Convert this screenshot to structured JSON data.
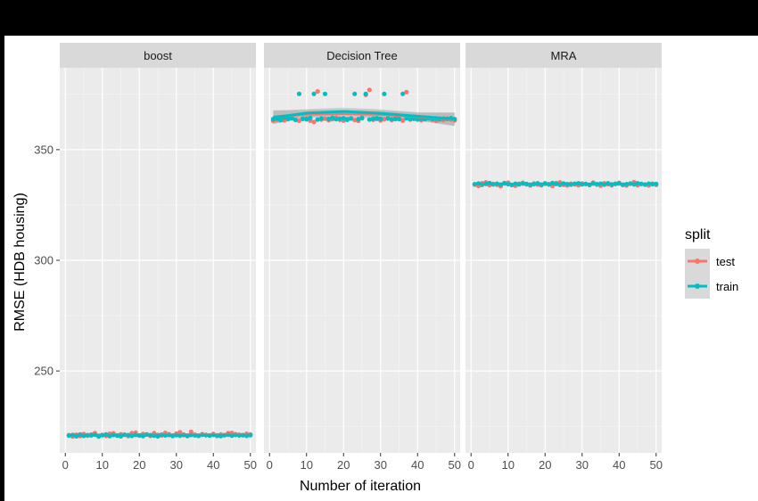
{
  "chart_data": {
    "type": "scatter",
    "xlabel": "Number of iteration",
    "ylabel": "RMSE (HDB housing)",
    "xlim": [
      -1.5,
      51.5
    ],
    "ylim": [
      213,
      387
    ],
    "x_ticks": [
      0,
      10,
      20,
      30,
      40,
      50
    ],
    "y_ticks": [
      250,
      300,
      350
    ],
    "grid": true,
    "legend": {
      "title": "split",
      "position": "right",
      "entries": [
        {
          "name": "test",
          "color": "#F8766D"
        },
        {
          "name": "train",
          "color": "#00BFC4"
        }
      ]
    },
    "facets": [
      {
        "name": "boost",
        "series": [
          {
            "name": "test",
            "x": [
              1,
              2,
              3,
              4,
              5,
              6,
              7,
              8,
              9,
              10,
              11,
              12,
              13,
              14,
              15,
              16,
              17,
              18,
              19,
              20,
              21,
              22,
              23,
              24,
              25,
              26,
              27,
              28,
              29,
              30,
              31,
              32,
              33,
              34,
              35,
              36,
              37,
              38,
              39,
              40,
              41,
              42,
              43,
              44,
              45,
              46,
              47,
              48,
              49,
              50
            ],
            "y": [
              221.0,
              220.4,
              221.2,
              220.6,
              221.5,
              220.8,
              221.3,
              221.9,
              220.5,
              221.1,
              220.7,
              221.6,
              221.8,
              220.9,
              221.4,
              221.2,
              220.6,
              221.9,
              222.1,
              220.8,
              221.5,
              221.3,
              220.7,
              221.9,
              221.1,
              220.9,
              222.0,
              221.4,
              220.6,
              221.7,
              222.3,
              221.0,
              220.8,
              222.5,
              221.2,
              220.7,
              221.4,
              221.1,
              220.9,
              221.5,
              220.6,
              221.3,
              221.0,
              221.9,
              222.0,
              221.4,
              221.2,
              221.0,
              221.6,
              221.3
            ],
            "smooth": [
              221.0,
              221.1,
              221.1,
              221.2,
              221.2,
              221.2
            ]
          },
          {
            "name": "train",
            "x": [
              1,
              2,
              3,
              4,
              5,
              6,
              7,
              8,
              9,
              10,
              11,
              12,
              13,
              14,
              15,
              16,
              17,
              18,
              19,
              20,
              21,
              22,
              23,
              24,
              25,
              26,
              27,
              28,
              29,
              30,
              31,
              32,
              33,
              34,
              35,
              36,
              37,
              38,
              39,
              40,
              41,
              42,
              43,
              44,
              45,
              46,
              47,
              48,
              49,
              50
            ],
            "y": [
              220.8,
              221.1,
              220.5,
              221.3,
              220.7,
              221.0,
              220.9,
              221.2,
              220.4,
              221.0,
              221.3,
              220.6,
              221.1,
              220.8,
              220.5,
              221.2,
              221.0,
              220.7,
              221.1,
              220.9,
              220.6,
              221.3,
              221.0,
              220.8,
              220.5,
              221.2,
              220.9,
              221.1,
              220.7,
              221.0,
              220.8,
              221.2,
              220.6,
              221.1,
              220.9,
              220.7,
              221.2,
              221.0,
              220.8,
              221.1,
              220.9,
              220.6,
              221.0,
              221.2,
              220.8,
              221.1,
              220.9,
              221.0,
              220.7,
              221.0
            ],
            "smooth": [
              220.9,
              221.0,
              221.0,
              221.0,
              221.0,
              221.0
            ]
          }
        ]
      },
      {
        "name": "Decision Tree",
        "series": [
          {
            "name": "test",
            "x": [
              1,
              2,
              3,
              4,
              5,
              6,
              7,
              8,
              9,
              10,
              11,
              12,
              13,
              14,
              15,
              16,
              17,
              18,
              19,
              20,
              21,
              22,
              23,
              24,
              25,
              26,
              27,
              28,
              29,
              30,
              31,
              32,
              33,
              34,
              35,
              36,
              37,
              38,
              39,
              40,
              41,
              42,
              43,
              44,
              45,
              46,
              47,
              48,
              49,
              50
            ],
            "y": [
              363.0,
              363.5,
              364.1,
              363.2,
              363.8,
              364.5,
              363.4,
              363.0,
              363.9,
              364.2,
              363.1,
              362.5,
              376.3,
              363.6,
              364.0,
              363.3,
              363.8,
              364.4,
              363.5,
              363.1,
              363.9,
              364.1,
              363.4,
              363.0,
              364.3,
              374.8,
              377.0,
              363.5,
              363.9,
              363.2,
              363.7,
              364.2,
              363.4,
              363.8,
              364.0,
              363.1,
              376.0,
              363.6,
              363.9,
              364.2,
              363.3,
              363.8,
              364.1,
              363.5,
              363.0,
              363.9,
              363.4,
              364.0,
              363.6,
              363.2
            ],
            "smooth": [
              364.8,
              366.0,
              366.3,
              365.9,
              364.9,
              363.6
            ]
          },
          {
            "name": "train",
            "x": [
              1,
              2,
              3,
              4,
              5,
              6,
              7,
              8,
              9,
              10,
              11,
              12,
              13,
              14,
              15,
              16,
              17,
              18,
              19,
              20,
              21,
              22,
              23,
              24,
              25,
              26,
              27,
              28,
              29,
              30,
              31,
              32,
              33,
              34,
              35,
              36,
              37,
              38,
              39,
              40,
              41,
              42,
              43,
              44,
              45,
              46,
              47,
              48,
              49,
              50
            ],
            "y": [
              363.8,
              364.1,
              363.3,
              364.6,
              363.9,
              364.2,
              363.5,
              375.2,
              364.0,
              363.7,
              364.3,
              375.2,
              363.6,
              364.1,
              375.2,
              363.9,
              364.4,
              363.8,
              364.0,
              364.2,
              363.5,
              364.1,
              375.2,
              363.8,
              364.3,
              375.2,
              363.6,
              364.0,
              364.2,
              363.9,
              375.2,
              364.1,
              363.7,
              364.0,
              363.8,
              375.2,
              364.2,
              363.9,
              364.1,
              363.6,
              364.0,
              363.8,
              364.3,
              363.9,
              364.1,
              363.7,
              364.0,
              363.9,
              364.2,
              363.8
            ],
            "smooth": [
              364.5,
              366.5,
              367.2,
              366.4,
              365.1,
              363.8
            ]
          }
        ]
      },
      {
        "name": "MRA",
        "series": [
          {
            "name": "test",
            "x": [
              1,
              2,
              3,
              4,
              5,
              6,
              7,
              8,
              9,
              10,
              11,
              12,
              13,
              14,
              15,
              16,
              17,
              18,
              19,
              20,
              21,
              22,
              23,
              24,
              25,
              26,
              27,
              28,
              29,
              30,
              31,
              32,
              33,
              34,
              35,
              36,
              37,
              38,
              39,
              40,
              41,
              42,
              43,
              44,
              45,
              46,
              47,
              48,
              49,
              50
            ],
            "y": [
              334.2,
              333.6,
              334.8,
              335.2,
              333.9,
              334.5,
              334.1,
              333.5,
              334.9,
              335.1,
              334.0,
              333.7,
              334.6,
              335.0,
              334.3,
              333.8,
              334.7,
              334.2,
              333.9,
              334.8,
              334.4,
              333.6,
              334.9,
              335.2,
              334.1,
              333.8,
              334.6,
              334.3,
              333.9,
              334.7,
              334.5,
              334.0,
              335.1,
              334.2,
              333.7,
              334.8,
              334.4,
              333.9,
              334.6,
              335.0,
              334.1,
              333.8,
              334.7,
              335.3,
              333.9,
              334.5,
              334.2,
              333.8,
              334.6,
              334.1
            ],
            "smooth": [
              334.3,
              334.4,
              334.4,
              334.4,
              334.4,
              334.4
            ]
          },
          {
            "name": "train",
            "x": [
              1,
              2,
              3,
              4,
              5,
              6,
              7,
              8,
              9,
              10,
              11,
              12,
              13,
              14,
              15,
              16,
              17,
              18,
              19,
              20,
              21,
              22,
              23,
              24,
              25,
              26,
              27,
              28,
              29,
              30,
              31,
              32,
              33,
              34,
              35,
              36,
              37,
              38,
              39,
              40,
              41,
              42,
              43,
              44,
              45,
              46,
              47,
              48,
              49,
              50
            ],
            "y": [
              334.4,
              334.7,
              334.1,
              334.5,
              334.9,
              334.3,
              334.6,
              334.2,
              334.8,
              334.4,
              334.0,
              334.6,
              334.3,
              334.7,
              334.5,
              334.1,
              334.4,
              334.8,
              334.2,
              334.6,
              334.3,
              334.9,
              334.5,
              334.1,
              334.7,
              334.4,
              334.2,
              334.6,
              334.8,
              334.3,
              334.5,
              334.1,
              334.7,
              334.4,
              334.6,
              334.2,
              334.8,
              334.3,
              334.5,
              334.7,
              334.1,
              334.4,
              334.6,
              334.3,
              334.8,
              334.5,
              334.2,
              334.6,
              334.4,
              334.5
            ],
            "smooth": [
              334.5,
              334.5,
              334.5,
              334.5,
              334.5,
              334.5
            ]
          }
        ]
      }
    ]
  }
}
